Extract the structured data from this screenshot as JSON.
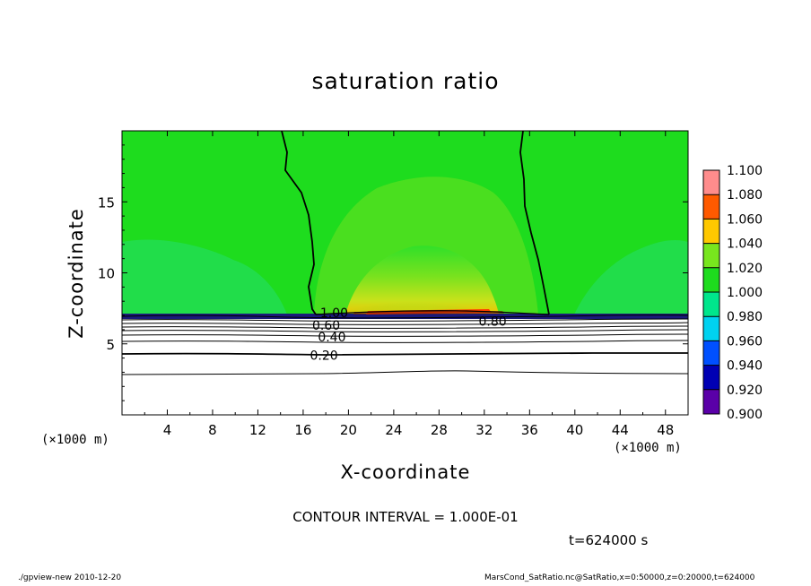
{
  "chart_data": {
    "type": "heatmap",
    "title": "saturation ratio",
    "xlabel": "X-coordinate",
    "ylabel": "Z-coordinate",
    "x_unit": "(×1000 m)",
    "xlim": [
      0,
      50
    ],
    "ylim": [
      0,
      20
    ],
    "x_ticks": [
      4,
      8,
      12,
      16,
      20,
      24,
      28,
      32,
      36,
      40,
      44,
      48
    ],
    "y_ticks": [
      5,
      10,
      15
    ],
    "colorbar": {
      "levels": [
        0.9,
        0.92,
        0.94,
        0.96,
        0.98,
        1.0,
        1.02,
        1.04,
        1.06,
        1.08,
        1.1
      ],
      "labels": [
        "0.900",
        "0.920",
        "0.940",
        "0.960",
        "0.980",
        "1.000",
        "1.020",
        "1.040",
        "1.060",
        "1.080",
        "1.100"
      ],
      "colors": [
        "#5a00a8",
        "#0000b4",
        "#0050ff",
        "#00d2f0",
        "#00e68c",
        "#1edc1e",
        "#78e61e",
        "#ffc800",
        "#ff5a00",
        "#ff8c8c"
      ]
    },
    "contour_labels": [
      {
        "text": "1.00",
        "x": 17.5,
        "z": 7.2
      },
      {
        "text": "0.80",
        "x": 31.5,
        "z": 6.6
      },
      {
        "text": "0.60",
        "x": 16.8,
        "z": 6.3
      },
      {
        "text": "0.40",
        "x": 17.3,
        "z": 5.5
      },
      {
        "text": "0.20",
        "x": 16.6,
        "z": 4.2
      }
    ],
    "contour_interval": "CONTOUR INTERVAL = 1.000E-01",
    "time": "t=624000 s"
  },
  "footer": {
    "left": "./gpview-new   2010-12-20",
    "right": "MarsCond_SatRatio.nc@SatRatio,x=0:50000,z=0:20000,t=624000"
  }
}
